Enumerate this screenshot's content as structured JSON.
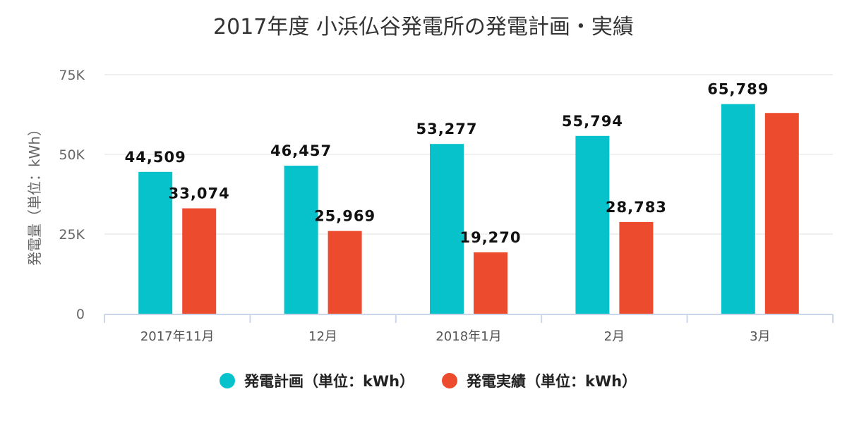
{
  "chart_data": {
    "type": "bar",
    "title": "2017年度 小浜仏谷発電所の発電計画・実績",
    "xlabel": "",
    "ylabel": "発電量（単位：kWh）",
    "ylim": [
      0,
      75000
    ],
    "yticks": [
      {
        "value": 0,
        "label": "0"
      },
      {
        "value": 25000,
        "label": "25K"
      },
      {
        "value": 50000,
        "label": "50K"
      },
      {
        "value": 75000,
        "label": "75K"
      }
    ],
    "grid": true,
    "legend_position": "bottom",
    "categories": [
      "2017年11月",
      "12月",
      "2018年1月",
      "2月",
      "3月"
    ],
    "series": [
      {
        "name": "発電計画（単位：kWh）",
        "color": "#07c2cb",
        "values": [
          44509,
          46457,
          53277,
          55794,
          65789
        ],
        "labels": [
          "44,509",
          "46,457",
          "53,277",
          "55,794",
          "65,789"
        ]
      },
      {
        "name": "発電実績（単位：kWh）",
        "color": "#ec4b2e",
        "values": [
          33074,
          25969,
          19270,
          28783,
          63000
        ],
        "labels": [
          "33,074",
          "25,969",
          "19,270",
          "28,783",
          ""
        ]
      }
    ]
  }
}
